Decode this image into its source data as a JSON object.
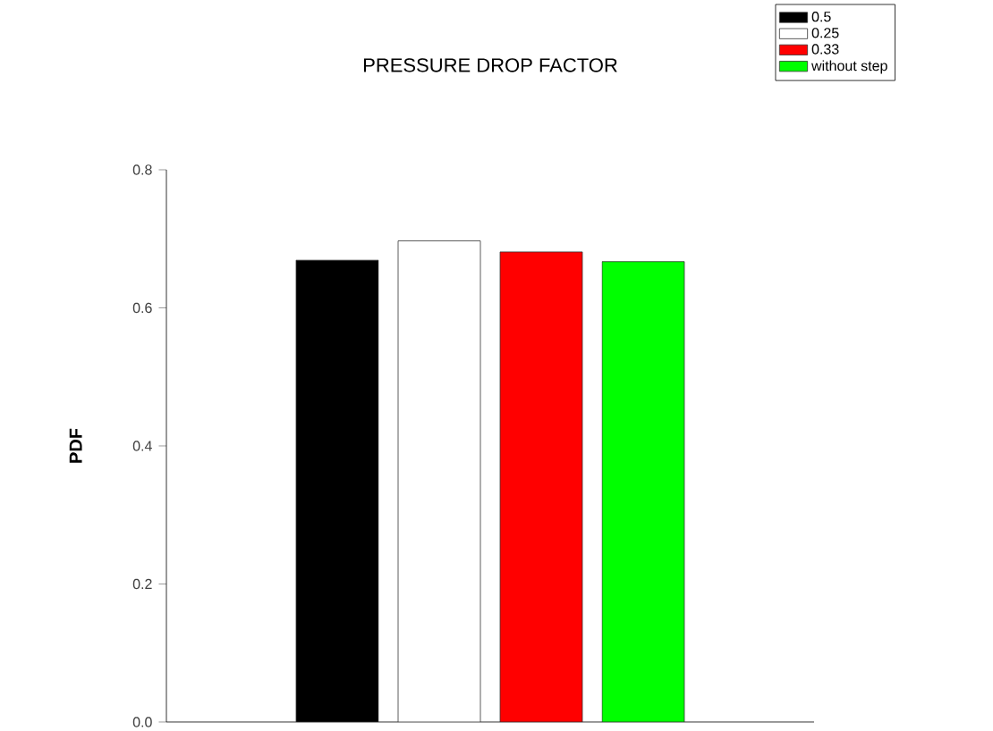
{
  "chart_data": {
    "type": "bar",
    "title": "PRESSURE DROP FACTOR",
    "ylabel": "PDF",
    "categories": [
      null
    ],
    "series": [
      {
        "name": "0.5",
        "color": "#000000",
        "values": [
          0.669
        ]
      },
      {
        "name": "0.25",
        "color": "#ffffff",
        "values": [
          0.697
        ]
      },
      {
        "name": "0.33",
        "color": "#ff0000",
        "values": [
          0.681
        ]
      },
      {
        "name": "without step",
        "color": "#00ff00",
        "values": [
          0.667
        ]
      }
    ],
    "ylim": [
      0,
      0.8
    ],
    "yticks": [
      {
        "value": 0,
        "label": "0.0"
      },
      {
        "value": 0.2,
        "label": "0.2"
      },
      {
        "value": 0.4,
        "label": "0.4"
      },
      {
        "value": 0.6,
        "label": "0.6"
      },
      {
        "value": 0.8,
        "label": "0.8"
      }
    ],
    "legend": "top right"
  }
}
